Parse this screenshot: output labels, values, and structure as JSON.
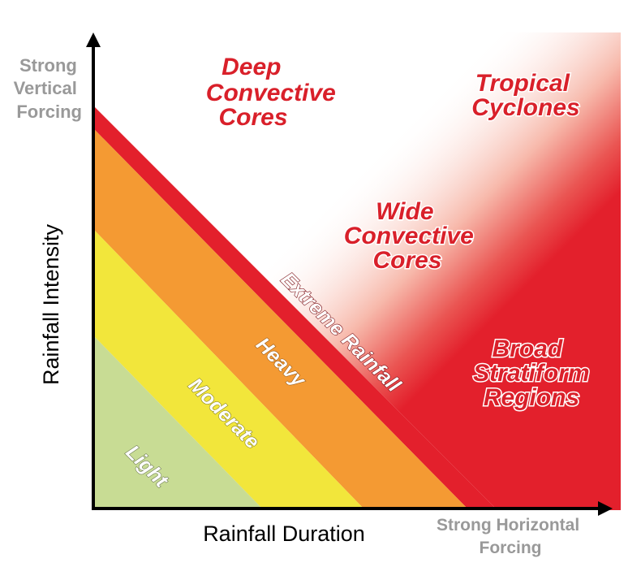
{
  "axes": {
    "y_title": "Rainfall Intensity",
    "x_title": "Rainfall Duration",
    "y_top_label": [
      "Strong",
      "Vertical",
      "Forcing"
    ],
    "x_end_label": [
      "Strong Horizontal",
      "Forcing"
    ]
  },
  "bands": {
    "light": "Light",
    "moderate": "Moderate",
    "heavy": "Heavy",
    "extreme": "Extreme Rainfall"
  },
  "regions": {
    "deep_convective": [
      "Deep",
      "Convective",
      "Cores"
    ],
    "tropical_cyclones": [
      "Tropical",
      "Cyclones"
    ],
    "wide_convective": [
      "Wide",
      "Convective",
      "Cores"
    ],
    "broad_stratiform": [
      "Broad",
      "Stratiform",
      "Regions"
    ]
  },
  "colors": {
    "light": "#c8dc94",
    "moderate": "#f2e63b",
    "heavy": "#f49a33",
    "extreme": "#e3202c",
    "label_red": "#d9202a",
    "corner_gray": "#999999"
  }
}
